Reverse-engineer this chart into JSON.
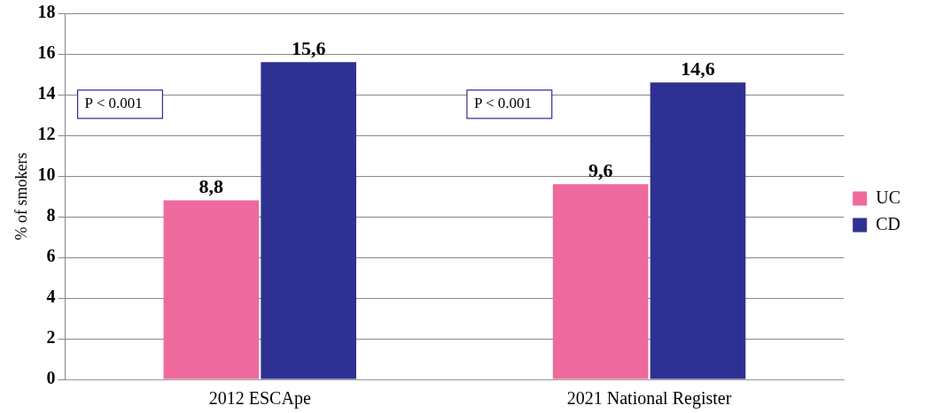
{
  "chart_data": {
    "type": "bar",
    "ylabel": "% of smokers",
    "categories": [
      "2012 ESCApe",
      "2021 National Register"
    ],
    "series": [
      {
        "name": "UC",
        "color": "#ee6a9c",
        "values": [
          8.8,
          9.6
        ],
        "value_labels": [
          "8,8",
          "9,6"
        ]
      },
      {
        "name": "CD",
        "color": "#2e3192",
        "values": [
          15.6,
          14.6
        ],
        "value_labels": [
          "15,6",
          "14,6"
        ]
      }
    ],
    "ylim": [
      0,
      18
    ],
    "yticks": [
      0,
      2,
      4,
      6,
      8,
      10,
      12,
      14,
      16,
      18
    ],
    "grid": "y",
    "legend": "right",
    "annotations": [
      "P < 0.001",
      "P < 0.001"
    ]
  }
}
